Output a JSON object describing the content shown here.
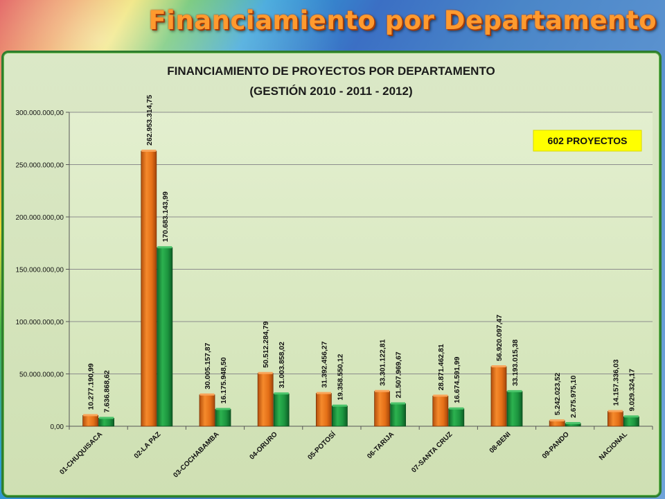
{
  "slide": {
    "title": "Financiamiento por Departamento"
  },
  "chart_data": {
    "type": "bar",
    "title_lines": [
      "FINANCIAMIENTO DE PROYECTOS POR DEPARTAMENTO",
      "(GESTIÓN 2010 - 2011 - 2012)"
    ],
    "categories": [
      "01-CHUQUISACA",
      "02-LA PAZ",
      "03-COCHABAMBA",
      "04-ORURO",
      "05-POTOSÍ",
      "06-TARIJA",
      "07-SANTA CRUZ",
      "08-BENI",
      "09-PANDO",
      "NACIONAL"
    ],
    "series": [
      {
        "color": "#e8741c",
        "values": [
          10277190.99,
          262953314.75,
          30005157.87,
          50512284.79,
          31392456.27,
          33301122.81,
          28871462.81,
          56920097.47,
          5242023.52,
          14157336.03
        ],
        "labels": [
          "10.277.190,99",
          "262.953.314,75",
          "30.005.157,87",
          "50.512.284,79",
          "31.392.456,27",
          "33.301.122,81",
          "28.871.462,81",
          "56.920.097,47",
          "5.242.023,52",
          "14.157.336,03"
        ]
      },
      {
        "color": "#1f9a43",
        "values": [
          7636868.62,
          170683143.99,
          16175948.5,
          31003858.02,
          19358550.12,
          21507969.67,
          16674591.99,
          33193015.38,
          2675975.1,
          9029324.17
        ],
        "labels": [
          "7.636.868,62",
          "170.683.143,99",
          "16.175.948,50",
          "31.003.858,02",
          "19.358.550,12",
          "21.507.969,67",
          "16.674.591,99",
          "33.193.015,38",
          "2.675.975,10",
          "9.029.324,17"
        ]
      }
    ],
    "yticks": [
      0,
      50000000,
      100000000,
      150000000,
      200000000,
      250000000,
      300000000
    ],
    "ytick_labels": [
      "0,00",
      "50.000.000,00",
      "100.000.000,00",
      "150.000.000,00",
      "200.000.000,00",
      "250.000.000,00",
      "300.000.000,00"
    ],
    "ylim": [
      0,
      300000000
    ],
    "grid": true,
    "legend": "none",
    "annotation": {
      "text": "602 PROYECTOS",
      "background": "#ffff00"
    }
  }
}
